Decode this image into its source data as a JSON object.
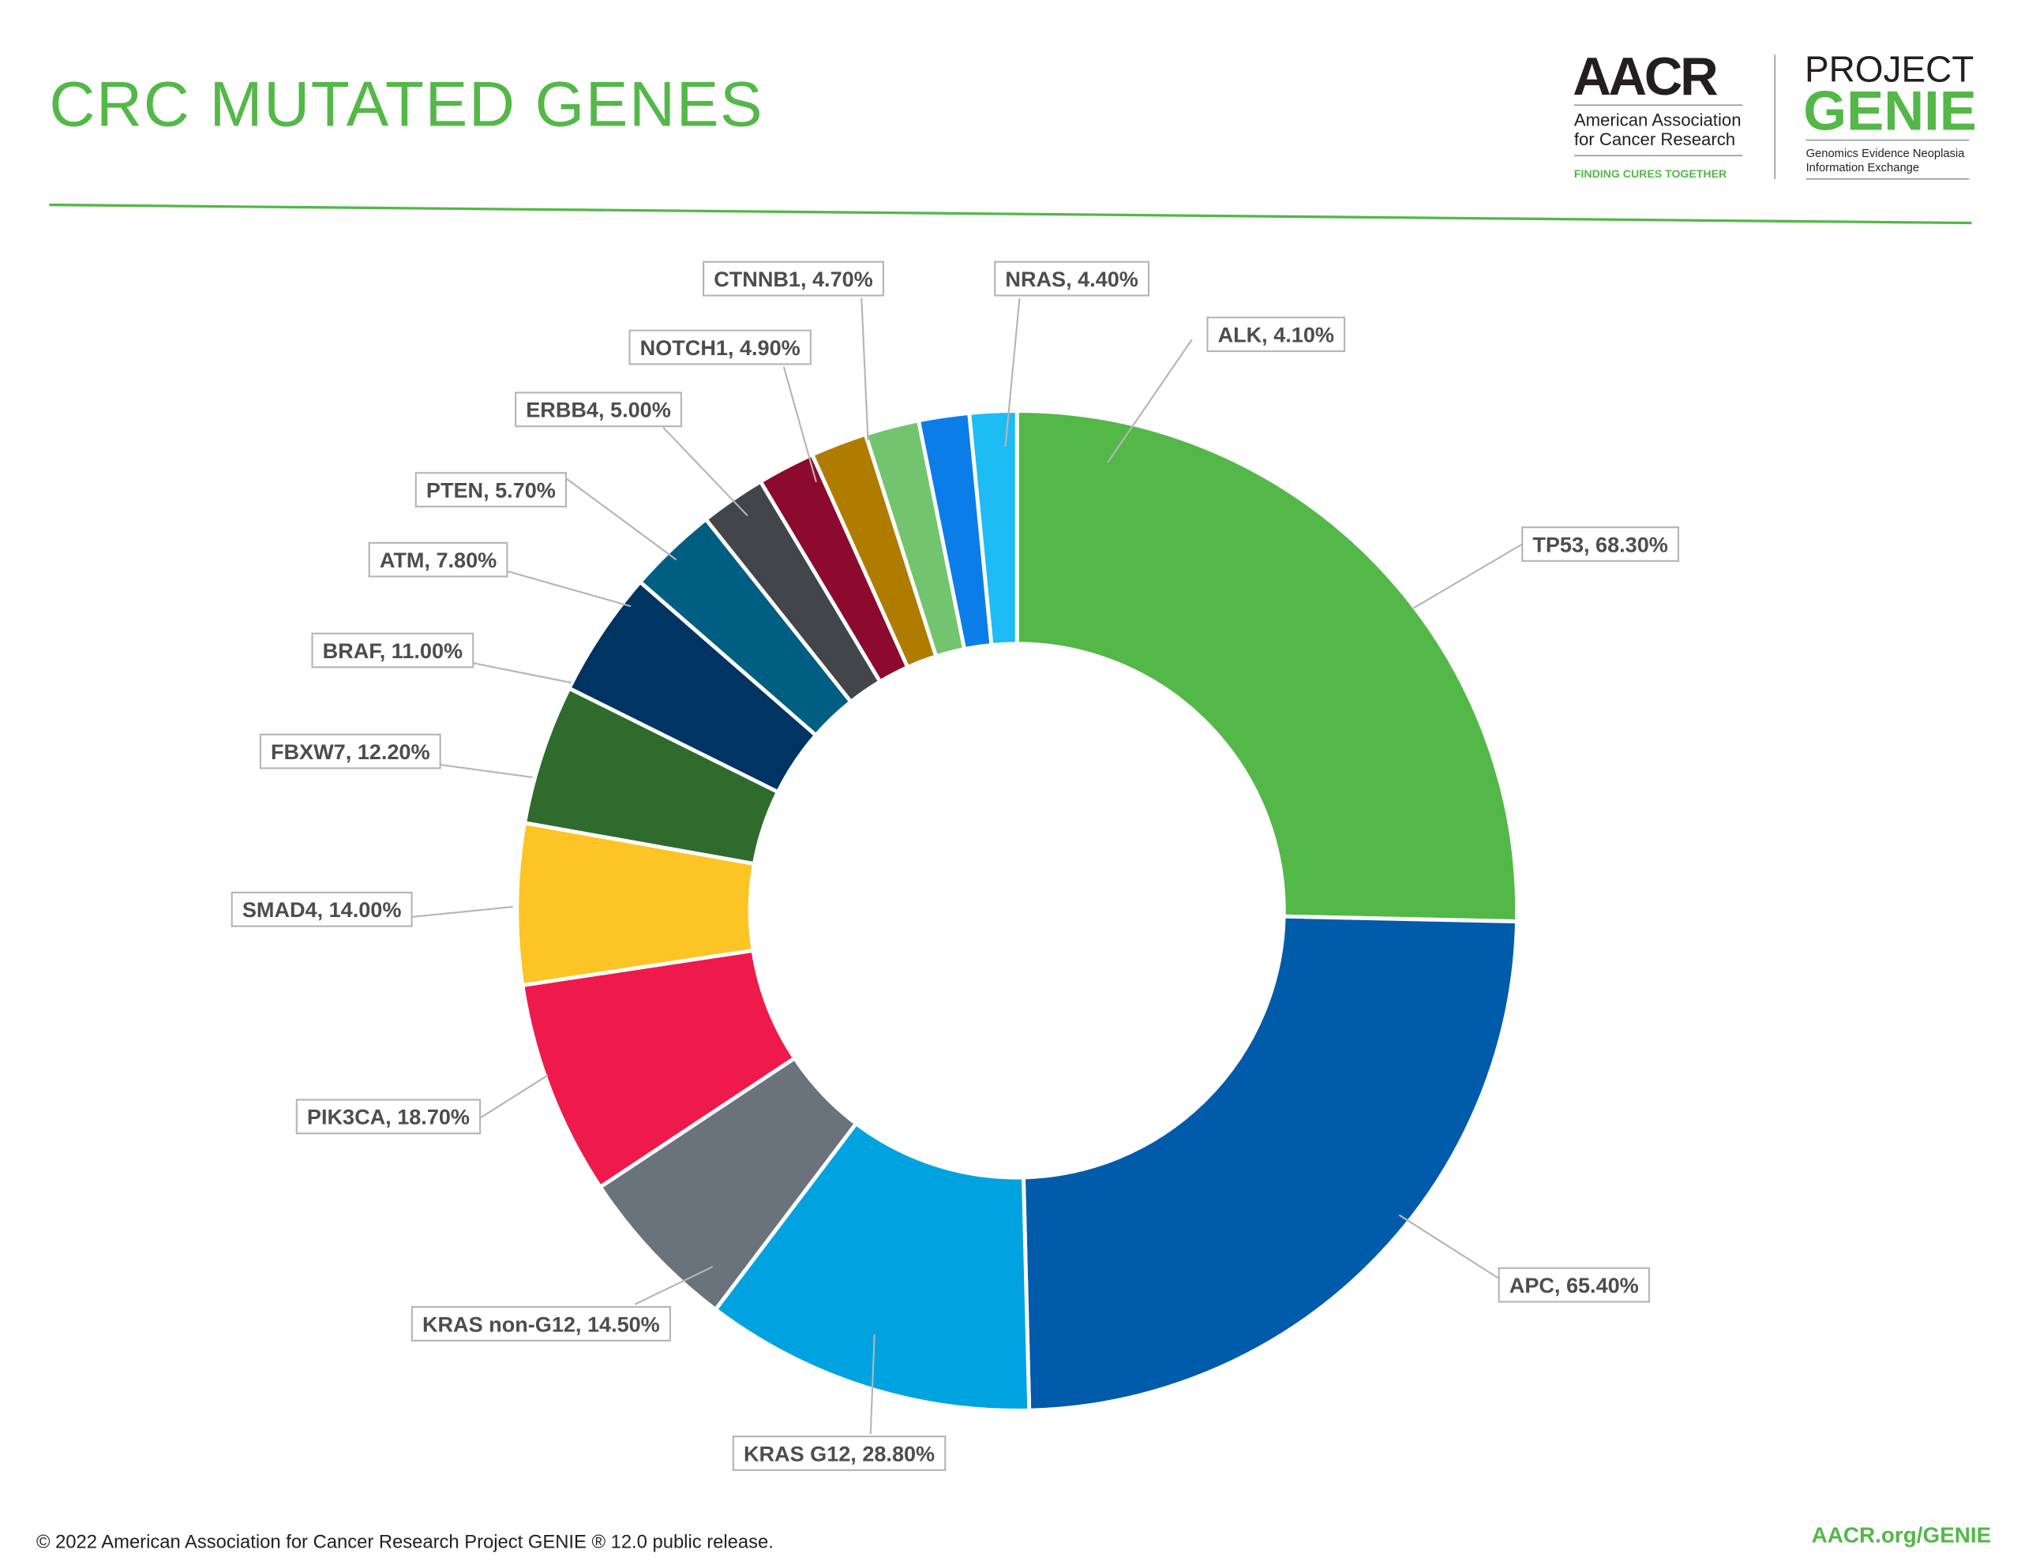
{
  "header": {
    "title": "CRC MUTATED GENES",
    "aacr_logo": {
      "wordmark": "AACR",
      "line1": "American Association",
      "line2": "for Cancer Research",
      "tagline": "FINDING CURES TOGETHER"
    },
    "genie_logo": {
      "project": "PROJECT",
      "genie": "GENIE",
      "line1": "Genomics Evidence Neoplasia",
      "line2": "Information Exchange"
    }
  },
  "chart_data": {
    "type": "pie",
    "variant": "donut",
    "title": "CRC MUTATED GENES",
    "unit": "%",
    "start": "top, clockwise",
    "slices": [
      {
        "name": "TP53",
        "value": 68.3,
        "label": "TP53, 68.30%",
        "color": "#53b848"
      },
      {
        "name": "APC",
        "value": 65.4,
        "label": "APC, 65.40%",
        "color": "#005bab"
      },
      {
        "name": "KRAS G12",
        "value": 28.8,
        "label": "KRAS G12, 28.80%",
        "color": "#00a3e0"
      },
      {
        "name": "KRAS non-G12",
        "value": 14.5,
        "label": "KRAS non-G12, 14.50%",
        "color": "#6a737b"
      },
      {
        "name": "PIK3CA",
        "value": 18.7,
        "label": "PIK3CA, 18.70%",
        "color": "#ed1a4b"
      },
      {
        "name": "SMAD4",
        "value": 14.0,
        "label": "SMAD4, 14.00%",
        "color": "#fdc425"
      },
      {
        "name": "FBXW7",
        "value": 12.2,
        "label": "FBXW7, 12.20%",
        "color": "#2f6b2c"
      },
      {
        "name": "BRAF",
        "value": 11.0,
        "label": "BRAF, 11.00%",
        "color": "#003462"
      },
      {
        "name": "ATM",
        "value": 7.8,
        "label": "ATM, 7.80%",
        "color": "#005e82"
      },
      {
        "name": "PTEN",
        "value": 5.7,
        "label": "PTEN, 5.70%",
        "color": "#424549"
      },
      {
        "name": "ERBB4",
        "value": 5.0,
        "label": "ERBB4, 5.00%",
        "color": "#8c0a2e"
      },
      {
        "name": "NOTCH1",
        "value": 4.9,
        "label": "NOTCH1, 4.90%",
        "color": "#b07c00"
      },
      {
        "name": "CTNNB1",
        "value": 4.7,
        "label": "CTNNB1, 4.70%",
        "color": "#72c56e"
      },
      {
        "name": "NRAS",
        "value": 4.4,
        "label": "NRAS, 4.40%",
        "color": "#0a7de8"
      },
      {
        "name": "ALK",
        "value": 4.1,
        "label": "ALK, 4.10%",
        "color": "#1dbcf5"
      }
    ]
  },
  "footer": {
    "copyright": "© 2022 American Association for Cancer Research Project GENIE ® 12.0 public release.",
    "link": "AACR.org/GENIE"
  },
  "colors": {
    "brand_green": "#53b848",
    "text_dark": "#231f20"
  }
}
